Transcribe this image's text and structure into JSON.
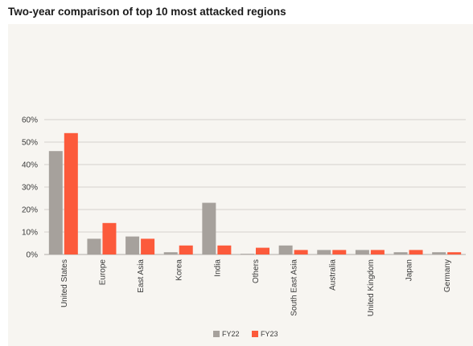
{
  "title": "Two-year comparison of top 10 most attacked regions",
  "chart_data": {
    "type": "bar",
    "categories": [
      "United States",
      "Europe",
      "East Asia",
      "Korea",
      "India",
      "Others",
      "South East Asia",
      "Australia",
      "United Kingdom",
      "Japan",
      "Germany"
    ],
    "series": [
      {
        "name": "FY22",
        "color": "#a6a19c",
        "values": [
          46,
          7,
          8,
          1,
          23,
          0.3,
          4,
          2,
          2,
          1,
          1
        ]
      },
      {
        "name": "FY23",
        "color": "#fc5a3b",
        "values": [
          54,
          14,
          7,
          4,
          4,
          3,
          2,
          2,
          2,
          2,
          1
        ]
      }
    ],
    "yticks": [
      "0%",
      "10%",
      "20%",
      "30%",
      "40%",
      "50%",
      "60%"
    ],
    "ylim": [
      0,
      60
    ],
    "grid": true,
    "legend": "bottom-center"
  }
}
